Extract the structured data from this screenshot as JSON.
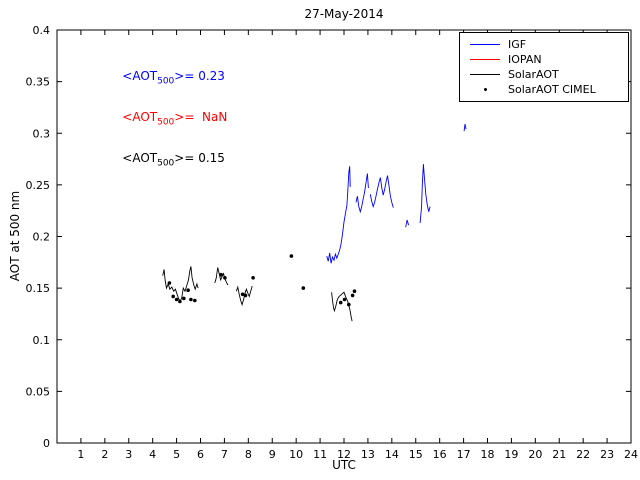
{
  "title": "27-May-2014",
  "xlabel": "UTC",
  "ylabel": "AOT at 500 nm",
  "annotations": [
    {
      "pre": "<AOT",
      "sub": "500",
      "post": ">= 0.23",
      "color": "#0000ff"
    },
    {
      "pre": "<AOT",
      "sub": "500",
      "post": ">=  NaN",
      "color": "#ff0000"
    },
    {
      "pre": "<AOT",
      "sub": "500",
      "post": ">= 0.15",
      "color": "#000000"
    }
  ],
  "chart_data": {
    "type": "line",
    "title": "27-May-2014",
    "xlabel": "UTC",
    "ylabel": "AOT at 500 nm",
    "xlim": [
      0,
      24
    ],
    "ylim": [
      0,
      0.4
    ],
    "legend_position": "top-right",
    "grid": false,
    "x_ticks": [
      1,
      2,
      3,
      4,
      5,
      6,
      7,
      8,
      9,
      10,
      11,
      12,
      13,
      14,
      15,
      16,
      17,
      18,
      19,
      20,
      21,
      22,
      23,
      24
    ],
    "y_ticks": {
      "values": [
        0,
        0.05,
        0.1,
        0.15,
        0.2,
        0.25,
        0.3,
        0.35,
        0.4
      ],
      "labels": [
        "0",
        "0.05",
        "0.1",
        "0.15",
        "0.2",
        "0.25",
        "0.3",
        "0.35",
        "0.4"
      ]
    },
    "series": [
      {
        "name": "IGF",
        "color": "#0000ff",
        "type": "line",
        "mean_aot500": 0.23,
        "segments": [
          [
            [
              11.28,
              0.181
            ],
            [
              11.34,
              0.176
            ],
            [
              11.4,
              0.184
            ],
            [
              11.46,
              0.174
            ],
            [
              11.52,
              0.18
            ],
            [
              11.58,
              0.177
            ],
            [
              11.64,
              0.183
            ],
            [
              11.7,
              0.179
            ],
            [
              11.76,
              0.183
            ],
            [
              11.82,
              0.187
            ],
            [
              11.88,
              0.193
            ],
            [
              11.94,
              0.203
            ],
            [
              12.0,
              0.214
            ],
            [
              12.06,
              0.222
            ],
            [
              12.12,
              0.23
            ],
            [
              12.16,
              0.244
            ],
            [
              12.2,
              0.262
            ],
            [
              12.24,
              0.268
            ],
            [
              12.26,
              0.248
            ]
          ],
          [
            [
              12.5,
              0.233
            ],
            [
              12.56,
              0.239
            ],
            [
              12.62,
              0.229
            ],
            [
              12.68,
              0.224
            ],
            [
              12.74,
              0.229
            ],
            [
              12.8,
              0.236
            ],
            [
              12.86,
              0.243
            ],
            [
              12.92,
              0.252
            ],
            [
              12.98,
              0.261
            ],
            [
              13.02,
              0.247
            ]
          ],
          [
            [
              13.1,
              0.241
            ],
            [
              13.16,
              0.234
            ],
            [
              13.22,
              0.229
            ],
            [
              13.28,
              0.233
            ],
            [
              13.34,
              0.239
            ],
            [
              13.4,
              0.246
            ],
            [
              13.46,
              0.252
            ],
            [
              13.52,
              0.257
            ],
            [
              13.58,
              0.247
            ],
            [
              13.64,
              0.24
            ],
            [
              13.7,
              0.246
            ],
            [
              13.76,
              0.253
            ],
            [
              13.82,
              0.259
            ],
            [
              13.88,
              0.249
            ],
            [
              13.94,
              0.239
            ],
            [
              14.0,
              0.233
            ],
            [
              14.06,
              0.228
            ]
          ],
          [
            [
              14.58,
              0.209
            ],
            [
              14.64,
              0.216
            ],
            [
              14.7,
              0.211
            ]
          ],
          [
            [
              15.18,
              0.213
            ],
            [
              15.24,
              0.228
            ],
            [
              15.28,
              0.252
            ],
            [
              15.32,
              0.27
            ],
            [
              15.36,
              0.257
            ],
            [
              15.42,
              0.241
            ],
            [
              15.48,
              0.231
            ],
            [
              15.54,
              0.224
            ],
            [
              15.6,
              0.229
            ]
          ],
          [
            [
              17.02,
              0.302
            ],
            [
              17.06,
              0.309
            ],
            [
              17.1,
              0.304
            ]
          ]
        ]
      },
      {
        "name": "IOPAN",
        "color": "#ff0000",
        "type": "line",
        "mean_aot500": "NaN",
        "segments": []
      },
      {
        "name": "SolarAOT",
        "color": "#000000",
        "type": "line",
        "mean_aot500": 0.15,
        "segments": [
          [
            [
              4.42,
              0.162
            ],
            [
              4.48,
              0.168
            ],
            [
              4.52,
              0.158
            ],
            [
              4.58,
              0.15
            ],
            [
              4.65,
              0.154
            ],
            [
              4.72,
              0.149
            ],
            [
              4.8,
              0.151
            ],
            [
              4.88,
              0.147
            ],
            [
              4.95,
              0.149
            ],
            [
              5.02,
              0.144
            ],
            [
              5.08,
              0.14
            ],
            [
              5.15,
              0.137
            ],
            [
              5.22,
              0.141
            ],
            [
              5.28,
              0.15
            ],
            [
              5.35,
              0.147
            ],
            [
              5.42,
              0.152
            ],
            [
              5.5,
              0.158
            ],
            [
              5.55,
              0.166
            ],
            [
              5.6,
              0.171
            ],
            [
              5.65,
              0.16
            ],
            [
              5.72,
              0.153
            ],
            [
              5.78,
              0.149
            ],
            [
              5.85,
              0.154
            ],
            [
              5.9,
              0.15
            ]
          ],
          [
            [
              6.6,
              0.155
            ],
            [
              6.66,
              0.16
            ],
            [
              6.72,
              0.17
            ],
            [
              6.78,
              0.164
            ],
            [
              6.84,
              0.158
            ],
            [
              6.9,
              0.161
            ],
            [
              6.96,
              0.164
            ],
            [
              7.02,
              0.159
            ],
            [
              7.08,
              0.156
            ],
            [
              7.14,
              0.153
            ]
          ],
          [
            [
              7.5,
              0.147
            ],
            [
              7.56,
              0.151
            ],
            [
              7.62,
              0.144
            ],
            [
              7.68,
              0.138
            ],
            [
              7.74,
              0.134
            ],
            [
              7.8,
              0.139
            ],
            [
              7.86,
              0.145
            ],
            [
              7.92,
              0.149
            ],
            [
              7.98,
              0.145
            ],
            [
              8.04,
              0.142
            ],
            [
              8.1,
              0.147
            ],
            [
              8.16,
              0.152
            ]
          ],
          [
            [
              11.48,
              0.146
            ],
            [
              11.52,
              0.138
            ],
            [
              11.56,
              0.131
            ],
            [
              11.6,
              0.128
            ],
            [
              11.66,
              0.133
            ],
            [
              11.72,
              0.139
            ],
            [
              11.8,
              0.142
            ],
            [
              11.9,
              0.144
            ],
            [
              12.0,
              0.146
            ],
            [
              12.08,
              0.141
            ],
            [
              12.16,
              0.137
            ],
            [
              12.24,
              0.13
            ],
            [
              12.3,
              0.122
            ],
            [
              12.34,
              0.118
            ]
          ]
        ]
      },
      {
        "name": "SolarAOT CIMEL",
        "color": "#000000",
        "type": "scatter",
        "points": [
          [
            4.7,
            0.155
          ],
          [
            4.86,
            0.142
          ],
          [
            5.0,
            0.139
          ],
          [
            5.14,
            0.137
          ],
          [
            5.3,
            0.14
          ],
          [
            5.48,
            0.148
          ],
          [
            5.6,
            0.139
          ],
          [
            5.76,
            0.138
          ],
          [
            6.86,
            0.163
          ],
          [
            7.02,
            0.16
          ],
          [
            7.76,
            0.144
          ],
          [
            7.88,
            0.143
          ],
          [
            8.2,
            0.16
          ],
          [
            9.8,
            0.181
          ],
          [
            10.3,
            0.15
          ],
          [
            11.86,
            0.136
          ],
          [
            12.02,
            0.139
          ],
          [
            12.2,
            0.134
          ],
          [
            12.36,
            0.143
          ],
          [
            12.44,
            0.147
          ]
        ]
      }
    ]
  }
}
